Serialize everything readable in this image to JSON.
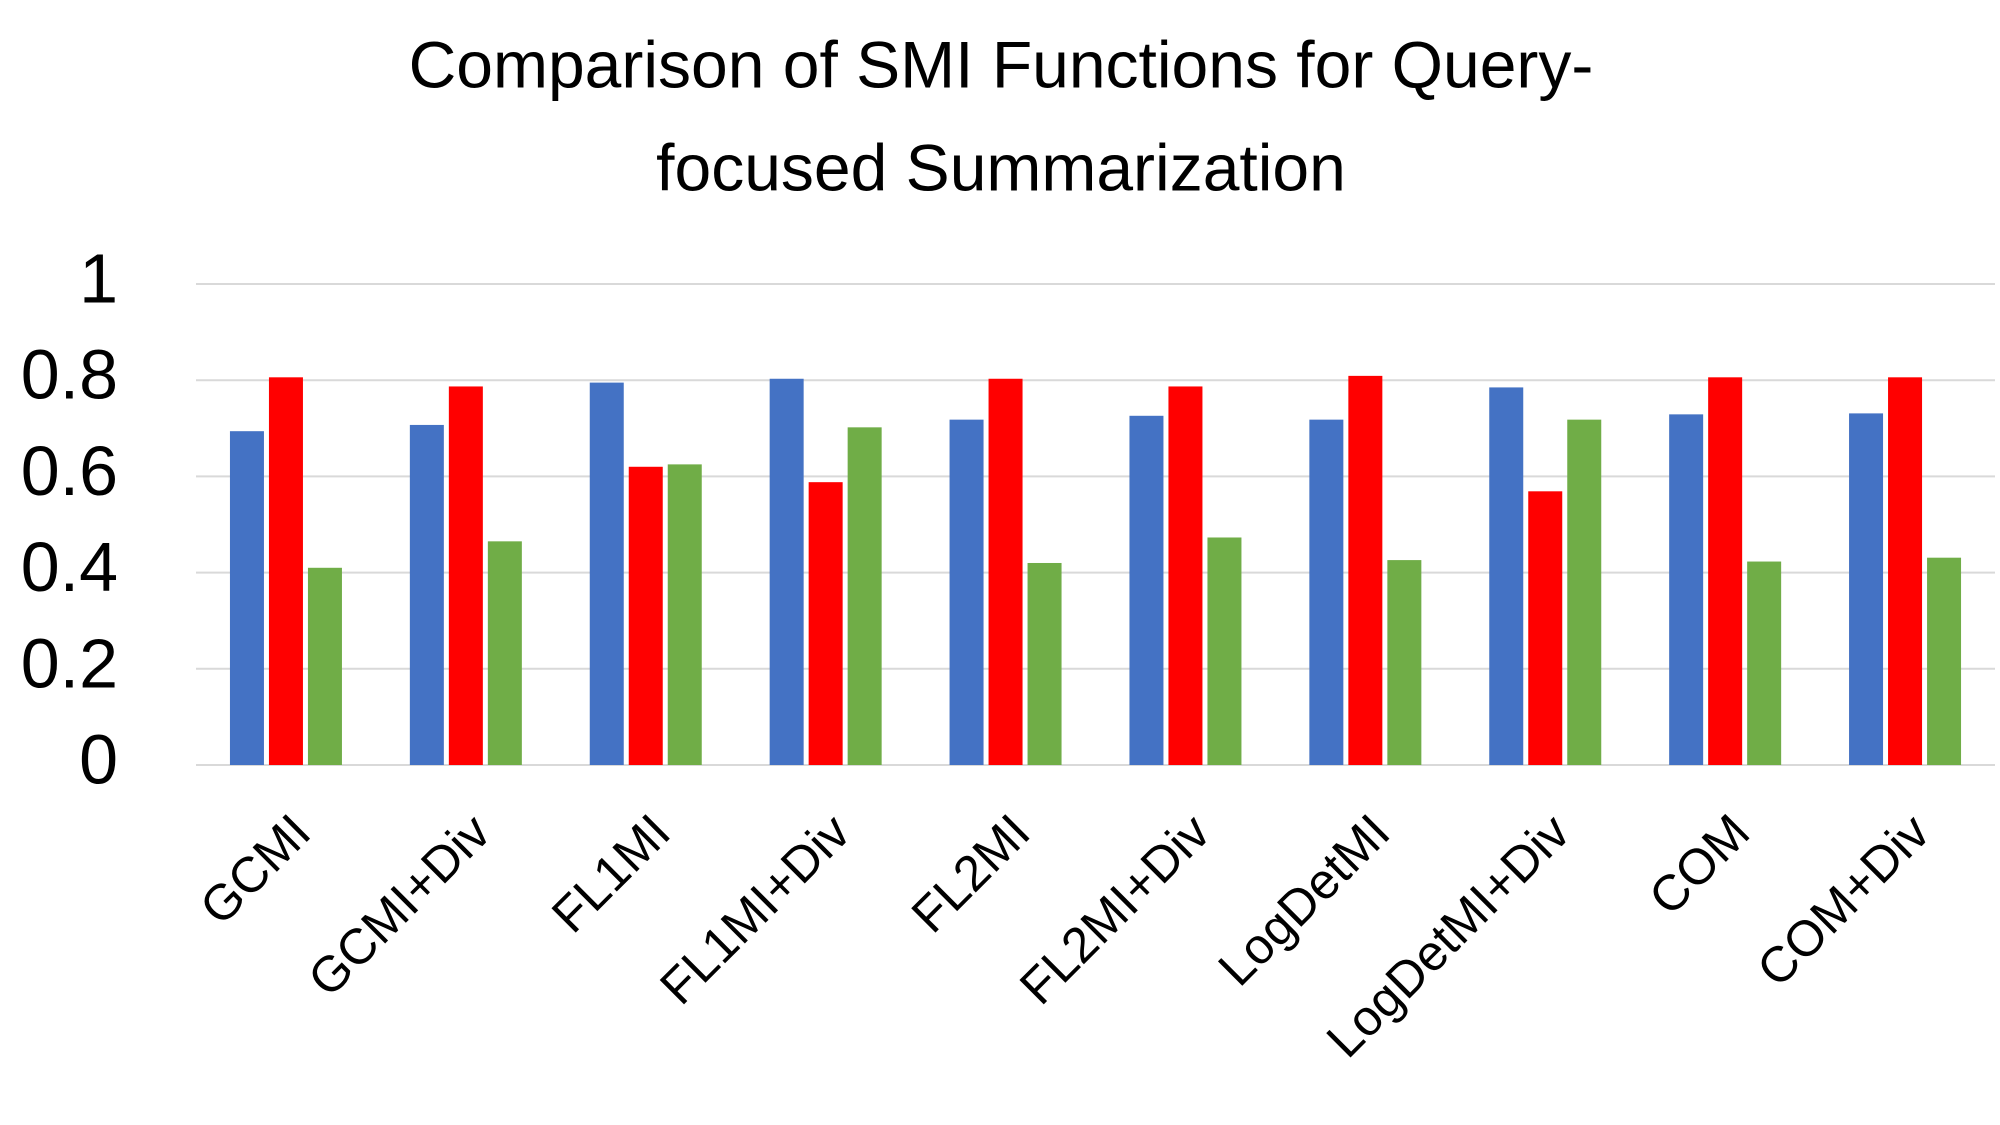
{
  "chart_data": {
    "type": "bar",
    "title": [
      "Comparison of SMI Functions for Query-",
      "focused Summarization"
    ],
    "categories": [
      "GCMI",
      "GCMI+Div",
      "FL1MI",
      "FL1MI+Div",
      "FL2MI",
      "FL2MI+Div",
      "LogDetMI",
      "LogDetMI+Div",
      "COM",
      "COM+Div"
    ],
    "series": [
      {
        "color": "#4472c4",
        "values": [
          0.694,
          0.707,
          0.795,
          0.803,
          0.718,
          0.726,
          0.718,
          0.785,
          0.729,
          0.731
        ]
      },
      {
        "color": "#ff0000",
        "values": [
          0.806,
          0.787,
          0.62,
          0.588,
          0.803,
          0.787,
          0.809,
          0.569,
          0.806,
          0.806
        ]
      },
      {
        "color": "#70ad47",
        "values": [
          0.41,
          0.465,
          0.625,
          0.702,
          0.42,
          0.473,
          0.426,
          0.718,
          0.423,
          0.431
        ]
      }
    ],
    "ylim": [
      0,
      1
    ],
    "yticks": [
      0,
      0.2,
      0.4,
      0.6,
      0.8,
      1
    ],
    "grid": true
  }
}
